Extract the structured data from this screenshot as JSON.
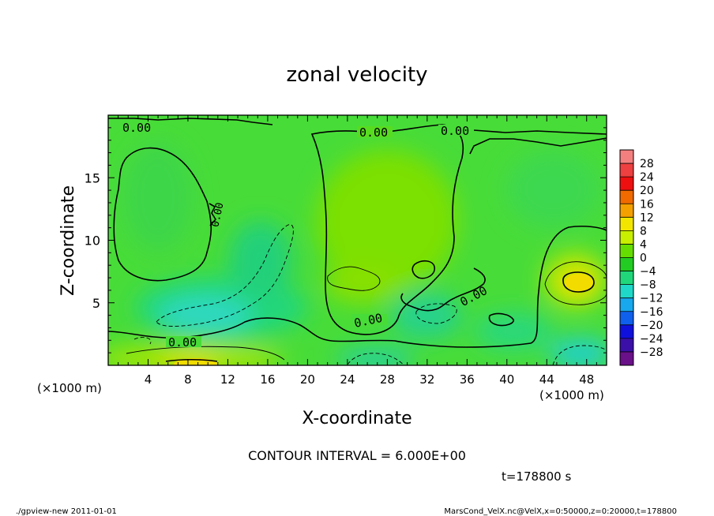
{
  "chart_data": {
    "type": "heatmap",
    "title": "zonal velocity",
    "xlabel": "X-coordinate",
    "ylabel": "Z-coordinate",
    "x_unit": "(×1000 m)",
    "y_unit": "(×1000 m)",
    "xlim": [
      0,
      50
    ],
    "ylim": [
      0,
      20
    ],
    "x_ticks": [
      4,
      8,
      12,
      16,
      20,
      24,
      28,
      32,
      36,
      40,
      44,
      48
    ],
    "y_ticks": [
      5,
      10,
      15
    ],
    "colorbar": {
      "levels": [
        28,
        24,
        20,
        16,
        12,
        8,
        4,
        0,
        -4,
        -8,
        -12,
        -16,
        -20,
        -24,
        -28
      ],
      "colors": [
        "#f47f7f",
        "#ee4040",
        "#ee1010",
        "#f06a00",
        "#f4a000",
        "#f2e600",
        "#c8ee00",
        "#66dd00",
        "#22cc22",
        "#20d87a",
        "#20d8c8",
        "#18a8ee",
        "#1060ee",
        "#1010dd",
        "#3a10a8",
        "#6a1088"
      ]
    },
    "contour_label": "0.00",
    "contour_interval_text": "CONTOUR INTERVAL = 6.000E+00",
    "time_text": "t=178800 s"
  },
  "footer": {
    "left": "./gpview-new   2011-01-01",
    "right": "MarsCond_VelX.nc@VelX,x=0:50000,z=0:20000,t=178800"
  }
}
